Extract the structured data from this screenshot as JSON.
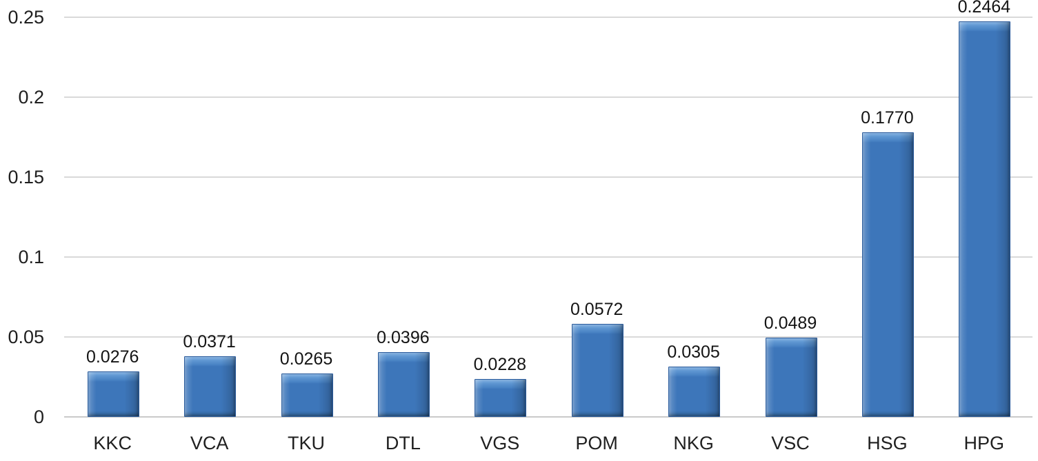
{
  "chart_data": {
    "type": "bar",
    "title": "",
    "xlabel": "",
    "ylabel": "",
    "categories": [
      "KKC",
      "VCA",
      "TKU",
      "DTL",
      "VGS",
      "POM",
      "NKG",
      "VSC",
      "HSG",
      "HPG"
    ],
    "values": [
      0.0276,
      0.0371,
      0.0265,
      0.0396,
      0.0228,
      0.0572,
      0.0305,
      0.0489,
      0.177,
      0.2464
    ],
    "value_labels": [
      "0.0276",
      "0.0371",
      "0.0265",
      "0.0396",
      "0.0228",
      "0.0572",
      "0.0305",
      "0.0489",
      "0.1770",
      "0.2464"
    ],
    "y_ticks": [
      "0",
      "0.05",
      "0.1",
      "0.15",
      "0.2",
      "0.25"
    ],
    "ylim": [
      0,
      0.25
    ],
    "grid": true,
    "legend": false
  },
  "colors": {
    "bar_fill": "#3d76ba",
    "bar_highlight": "#8ab7e6",
    "bar_border": "#2a5b9c",
    "gridline": "#d9d9d9",
    "axis_line": "#c9c9c9",
    "text": "#1f1f1f"
  }
}
